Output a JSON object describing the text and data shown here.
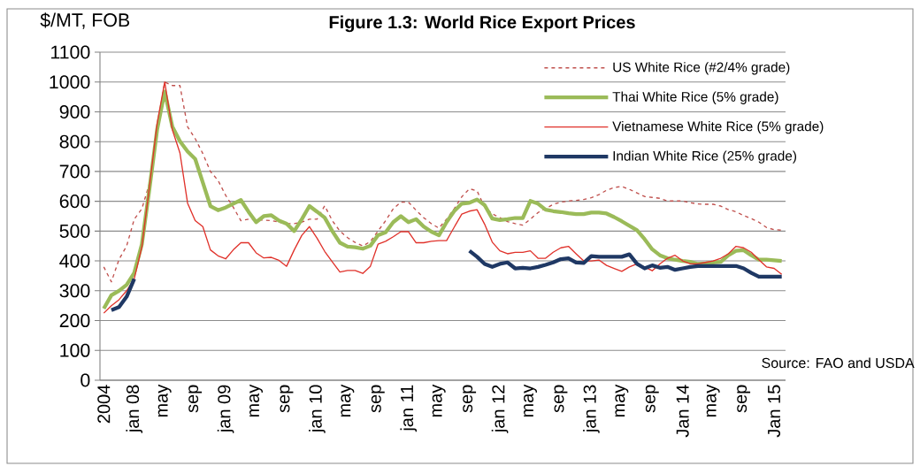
{
  "chart_data": {
    "type": "line",
    "title": "Figure 1.3: World Rice Export Prices",
    "ylabel": "$/MT, FOB",
    "annotations": [
      "Source: FAO and USDA"
    ],
    "categories": [
      "2004",
      null,
      null,
      null,
      "jan 08",
      null,
      null,
      null,
      "may",
      null,
      null,
      null,
      "sep",
      null,
      null,
      null,
      "jan 09",
      null,
      null,
      null,
      "may",
      null,
      null,
      null,
      "sep",
      null,
      null,
      null,
      "jan 10",
      null,
      null,
      null,
      "may",
      null,
      null,
      null,
      "sep",
      null,
      null,
      null,
      "jan 11",
      null,
      null,
      null,
      "may",
      null,
      null,
      null,
      "sep",
      null,
      null,
      null,
      "jan 12",
      null,
      null,
      null,
      "may",
      null,
      null,
      null,
      "sep",
      null,
      null,
      null,
      "jan 13",
      null,
      null,
      null,
      "may",
      null,
      null,
      null,
      "sep",
      null,
      null,
      null,
      "Jan 14",
      null,
      null,
      null,
      "may",
      null,
      null,
      null,
      "sep",
      null,
      null,
      null,
      "Jan 15",
      null
    ],
    "series": [
      {
        "name": "US White Rice (#2/4% grade)",
        "color": "#c0504d",
        "line_style": "dashed",
        "values": [
          380,
          330,
          405,
          450,
          540,
          575,
          660,
          840,
          1000,
          988,
          988,
          850,
          810,
          760,
          700,
          670,
          620,
          580,
          535,
          540,
          537,
          537,
          535,
          530,
          525,
          525,
          530,
          540,
          540,
          585,
          535,
          500,
          478,
          462,
          450,
          465,
          500,
          535,
          575,
          597,
          597,
          570,
          545,
          525,
          510,
          540,
          575,
          615,
          642,
          635,
          580,
          558,
          545,
          532,
          525,
          520,
          540,
          562,
          575,
          590,
          597,
          601,
          603,
          606,
          612,
          622,
          637,
          646,
          650,
          640,
          628,
          616,
          613,
          610,
          601,
          601,
          601,
          595,
          591,
          590,
          590,
          584,
          572,
          565,
          552,
          542,
          530,
          512,
          505,
          503
        ]
      },
      {
        "name": "Thai White Rice (5% grade)",
        "color": "#9bbb59",
        "line_style": "solid",
        "values": [
          240,
          285,
          300,
          320,
          360,
          456,
          643,
          840,
          968,
          850,
          801,
          767,
          742,
          663,
          584,
          570,
          579,
          592,
          604,
          565,
          530,
          550,
          553,
          535,
          525,
          500,
          540,
          584,
          565,
          545,
          500,
          461,
          448,
          446,
          441,
          451,
          486,
          496,
          530,
          550,
          530,
          540,
          515,
          498,
          486,
          530,
          567,
          592,
          595,
          606,
          587,
          542,
          537,
          540,
          544,
          544,
          601,
          592,
          572,
          567,
          564,
          560,
          557,
          557,
          562,
          562,
          559,
          547,
          533,
          518,
          503,
          473,
          439,
          419,
          409,
          404,
          400,
          397,
          390,
          392,
          395,
          397,
          419,
          434,
          436,
          419,
          404,
          404,
          402,
          400
        ]
      },
      {
        "name": "Vietnamese White Rice (5% grade)",
        "color": "#e0322b",
        "line_style": "solid",
        "values": [
          225,
          250,
          270,
          300,
          340,
          447,
          650,
          860,
          1000,
          840,
          762,
          594,
          535,
          515,
          437,
          417,
          407,
          437,
          461,
          461,
          427,
          410,
          412,
          402,
          382,
          437,
          486,
          515,
          476,
          432,
          397,
          363,
          368,
          368,
          358,
          382,
          456,
          466,
          481,
          498,
          498,
          461,
          461,
          466,
          468,
          468,
          513,
          557,
          567,
          572,
          523,
          463,
          434,
          424,
          429,
          429,
          434,
          409,
          409,
          429,
          444,
          449,
          424,
          400,
          400,
          403,
          385,
          375,
          365,
          380,
          390,
          380,
          367,
          390,
          409,
          419,
          400,
          390,
          390,
          395,
          400,
          409,
          424,
          449,
          444,
          429,
          404,
          380,
          375,
          355
        ]
      },
      {
        "name": "Indian White Rice (25% grade)",
        "color": "#1f3864",
        "line_style": "solid",
        "values": [
          null,
          235,
          245,
          280,
          340,
          null,
          null,
          null,
          null,
          null,
          null,
          null,
          null,
          null,
          null,
          null,
          null,
          null,
          null,
          null,
          null,
          null,
          null,
          null,
          null,
          null,
          null,
          null,
          null,
          null,
          null,
          null,
          null,
          null,
          null,
          null,
          null,
          null,
          null,
          null,
          null,
          null,
          null,
          null,
          null,
          null,
          null,
          null,
          434,
          414,
          390,
          380,
          390,
          395,
          375,
          377,
          375,
          380,
          387,
          395,
          406,
          409,
          395,
          393,
          416,
          414,
          414,
          414,
          414,
          422,
          390,
          375,
          385,
          377,
          380,
          370,
          375,
          380,
          383,
          383,
          383,
          383,
          383,
          383,
          375,
          360,
          347,
          347,
          347,
          347
        ]
      }
    ],
    "ylim": [
      0,
      1100
    ],
    "yticks": [
      0,
      100,
      200,
      300,
      400,
      500,
      600,
      700,
      800,
      900,
      1000,
      1100
    ],
    "grid": "y",
    "legend": "top right"
  }
}
